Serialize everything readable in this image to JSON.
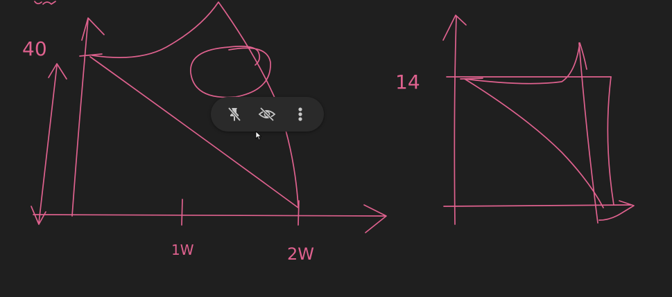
{
  "canvas": {
    "background": "#1f1f1f",
    "ink_color": "#e0628f",
    "left_chart": {
      "y_label": "40",
      "x_ticks": [
        "1W",
        "2W"
      ]
    },
    "right_chart": {
      "y_label": "14"
    }
  },
  "toolbar": {
    "buttons": [
      {
        "icon": "unpin-icon",
        "tooltip": ""
      },
      {
        "icon": "visibility-off-icon",
        "tooltip": ""
      },
      {
        "icon": "more-vertical-icon",
        "tooltip": ""
      }
    ],
    "icon_color": "#c8c8c8"
  }
}
